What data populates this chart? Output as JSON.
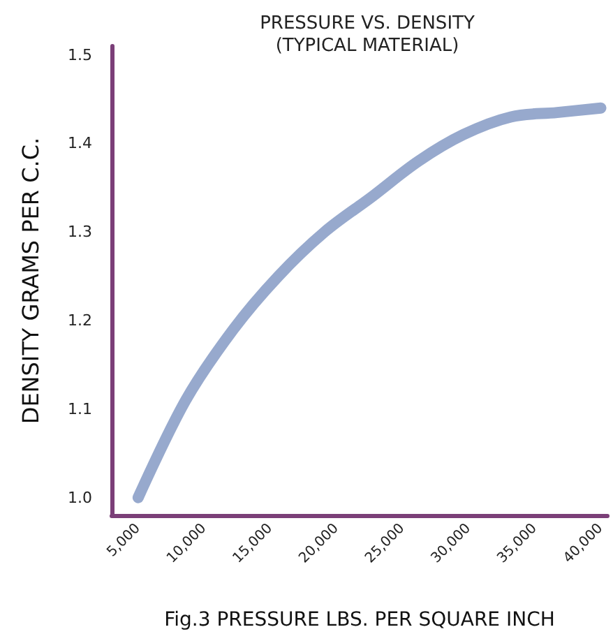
{
  "chart_data": {
    "type": "line",
    "title": "PRESSURE VS. DENSITY\n(TYPICAL MATERIAL)",
    "xlabel": "Fig.3 PRESSURE LBS. PER SQUARE INCH",
    "ylabel": "DENSITY GRAMS PER C.C.",
    "x": [
      5000,
      8600,
      12200,
      15600,
      19100,
      22700,
      26200,
      29600,
      33200,
      36700,
      40000
    ],
    "series": [
      {
        "color": "#97a9cd",
        "values": [
          1.0,
          1.11,
          1.19,
          1.25,
          1.3,
          1.34,
          1.38,
          1.41,
          1.43,
          1.435,
          1.44
        ]
      }
    ],
    "xlim": [
      3000,
      40500
    ],
    "ylim": [
      0.98,
      1.51
    ],
    "xticks": [
      {
        "value": 5000,
        "label": "5,000"
      },
      {
        "value": 10000,
        "label": "10,000"
      },
      {
        "value": 15000,
        "label": "15,000"
      },
      {
        "value": 20000,
        "label": "20,000"
      },
      {
        "value": 25000,
        "label": "25,000"
      },
      {
        "value": 30000,
        "label": "30,000"
      },
      {
        "value": 35000,
        "label": "35,000"
      },
      {
        "value": 40000,
        "label": "40,000"
      }
    ],
    "yticks": [
      {
        "value": 1,
        "label": "1.0"
      },
      1.1,
      1.2,
      1.3,
      1.4,
      1.5
    ],
    "grid": false,
    "line_style": "solid"
  }
}
